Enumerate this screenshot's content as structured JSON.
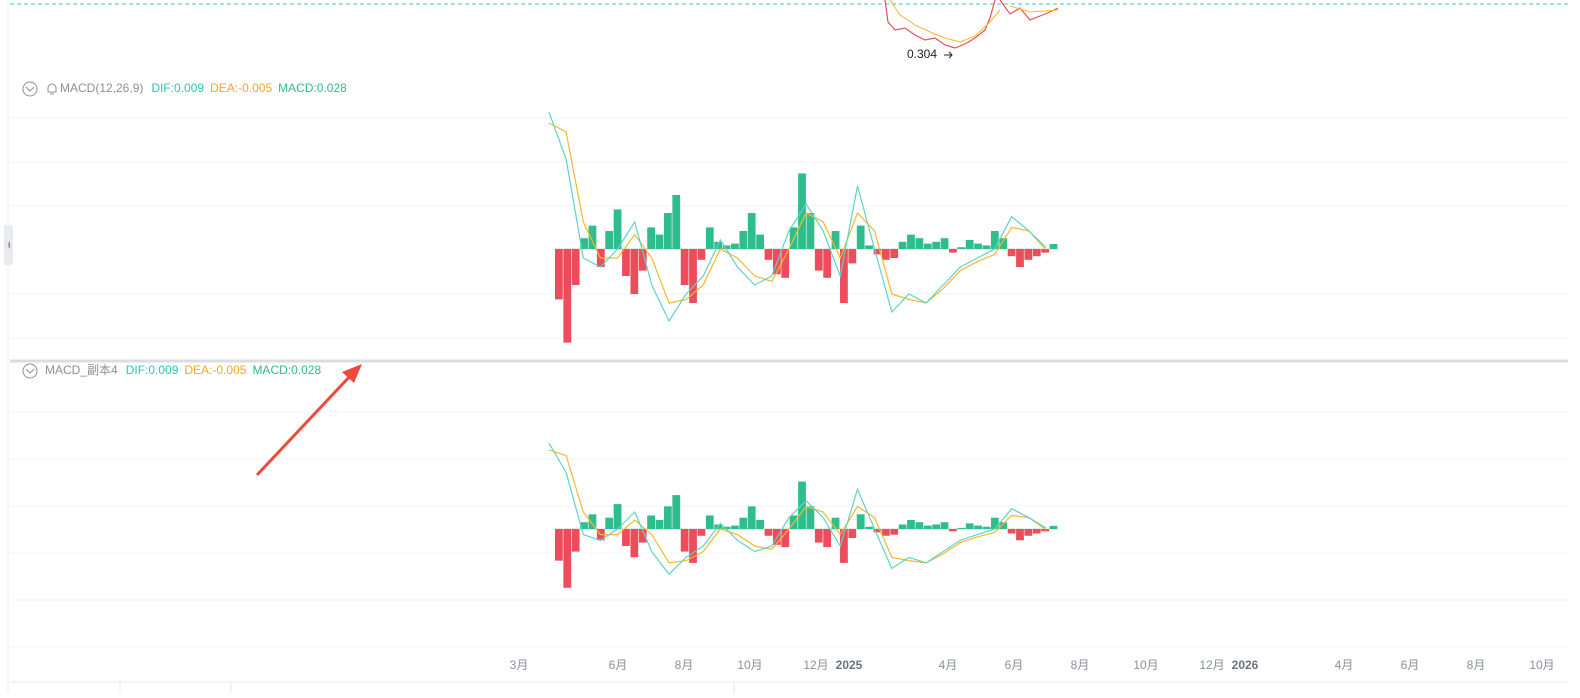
{
  "price_label": "0.304",
  "panels": [
    {
      "title": "MACD(12,26,9)",
      "dif_label": "DIF:0.009",
      "dea_label": "DEA:-0.005",
      "macd_label": "MACD:0.028"
    },
    {
      "title": "MACD_副本4",
      "dif_label": "DIF:0.009",
      "dea_label": "DEA:-0.005",
      "macd_label": "MACD:0.028"
    }
  ],
  "chart_data": {
    "type": "macd",
    "categories": [
      "3月",
      null,
      null,
      "6月",
      null,
      "8月",
      null,
      "10月",
      null,
      "12月",
      "2025",
      null,
      null,
      "4月",
      null,
      "6月",
      null,
      "8月",
      null,
      "10月",
      null,
      "12月",
      "2026",
      null,
      null,
      "4月",
      null,
      "6月",
      null,
      "8月",
      null,
      "10月"
    ],
    "dif": {
      "color": "#5fd3c4",
      "values": [
        0.76,
        0.5,
        -0.05,
        -0.1,
        0.0,
        0.15,
        -0.2,
        -0.4,
        -0.25,
        -0.15,
        0.05,
        -0.1,
        -0.2,
        -0.15,
        0.1,
        0.25,
        0.1,
        -0.15,
        0.35,
        0.0,
        -0.35,
        -0.25,
        -0.3,
        -0.2,
        -0.1,
        -0.05,
        0.0,
        0.18,
        0.1,
        0.009
      ]
    },
    "dea": {
      "color": "#f5b82e",
      "values": [
        0.7,
        0.65,
        0.15,
        -0.05,
        -0.05,
        0.08,
        -0.05,
        -0.3,
        -0.28,
        -0.2,
        0.0,
        -0.05,
        -0.15,
        -0.18,
        0.0,
        0.2,
        0.15,
        -0.05,
        0.2,
        0.1,
        -0.25,
        -0.28,
        -0.3,
        -0.22,
        -0.12,
        -0.07,
        -0.03,
        0.12,
        0.1,
        -0.005
      ]
    },
    "histogram": {
      "up_color": "#2ebd8d",
      "down_color": "#eb4d5c",
      "values": [
        -0.28,
        -0.52,
        -0.2,
        0.06,
        0.13,
        -0.1,
        0.1,
        0.22,
        -0.15,
        -0.25,
        -0.12,
        0.12,
        0.08,
        0.2,
        0.3,
        -0.2,
        -0.3,
        -0.06,
        0.12,
        0.04,
        0.02,
        0.03,
        0.1,
        0.2,
        0.08,
        -0.06,
        -0.14,
        -0.16,
        0.12,
        0.42,
        0.2,
        -0.12,
        -0.16,
        0.1,
        -0.3,
        -0.08,
        0.13,
        0.02,
        -0.03,
        -0.06,
        -0.05,
        0.04,
        0.08,
        0.06,
        0.03,
        0.04,
        0.06,
        -0.02,
        0.01,
        0.05,
        0.03,
        0.02,
        0.1,
        0.06,
        -0.04,
        -0.1,
        -0.06,
        -0.04,
        -0.02,
        0.028
      ]
    }
  }
}
